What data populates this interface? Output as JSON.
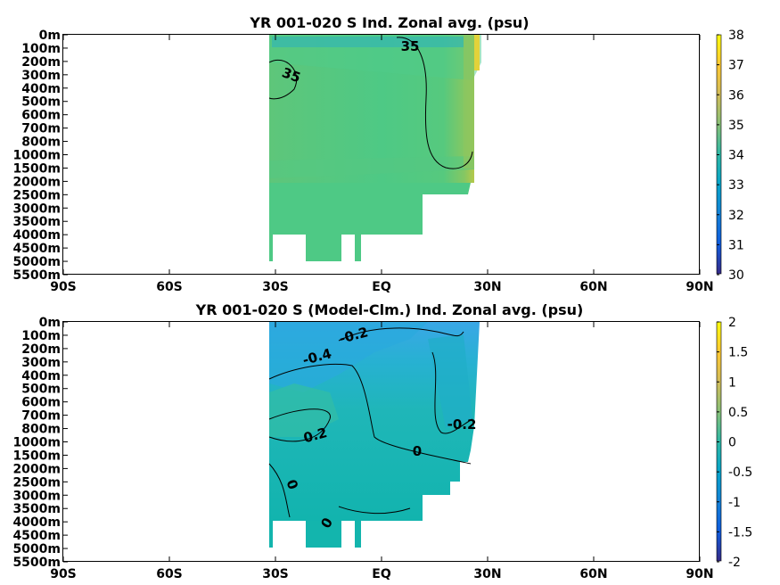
{
  "chart_data": [
    {
      "type": "heatmap",
      "title": "YR 001-020 S Ind. Zonal avg. (psu)",
      "xlabel": "",
      "ylabel": "",
      "x_ticks": [
        "90S",
        "60S",
        "30S",
        "EQ",
        "30N",
        "60N",
        "90N"
      ],
      "y_ticks": [
        "0m",
        "100m",
        "200m",
        "300m",
        "400m",
        "500m",
        "600m",
        "700m",
        "800m",
        "1000m",
        "1500m",
        "2000m",
        "2500m",
        "3000m",
        "3500m",
        "4000m",
        "4500m",
        "5000m",
        "5500m"
      ],
      "colorbar": {
        "min": 30,
        "max": 38,
        "ticks": [
          "30",
          "31",
          "32",
          "33",
          "34",
          "35",
          "36",
          "37",
          "38"
        ]
      },
      "contour_labels": [
        "35",
        "35"
      ],
      "colormap": "parula",
      "data_extent_lat": [
        -35,
        25
      ]
    },
    {
      "type": "heatmap",
      "title": "YR 001-020 S (Model-Clm.) Ind. Zonal avg. (psu)",
      "xlabel": "",
      "ylabel": "",
      "x_ticks": [
        "90S",
        "60S",
        "30S",
        "EQ",
        "30N",
        "60N",
        "90N"
      ],
      "y_ticks": [
        "0m",
        "100m",
        "200m",
        "300m",
        "400m",
        "500m",
        "600m",
        "700m",
        "800m",
        "1000m",
        "1500m",
        "2000m",
        "2500m",
        "3000m",
        "3500m",
        "4000m",
        "4500m",
        "5000m",
        "5500m"
      ],
      "colorbar": {
        "min": -2,
        "max": 2,
        "ticks": [
          "-2",
          "-1.5",
          "-1",
          "-0.5",
          "0",
          "0.5",
          "1",
          "1.5",
          "2"
        ]
      },
      "contour_labels": [
        "-0.2",
        "-0.4",
        "0.2",
        "0",
        "-0.2",
        "0",
        "0"
      ],
      "colormap": "parula",
      "data_extent_lat": [
        -35,
        25
      ]
    }
  ]
}
